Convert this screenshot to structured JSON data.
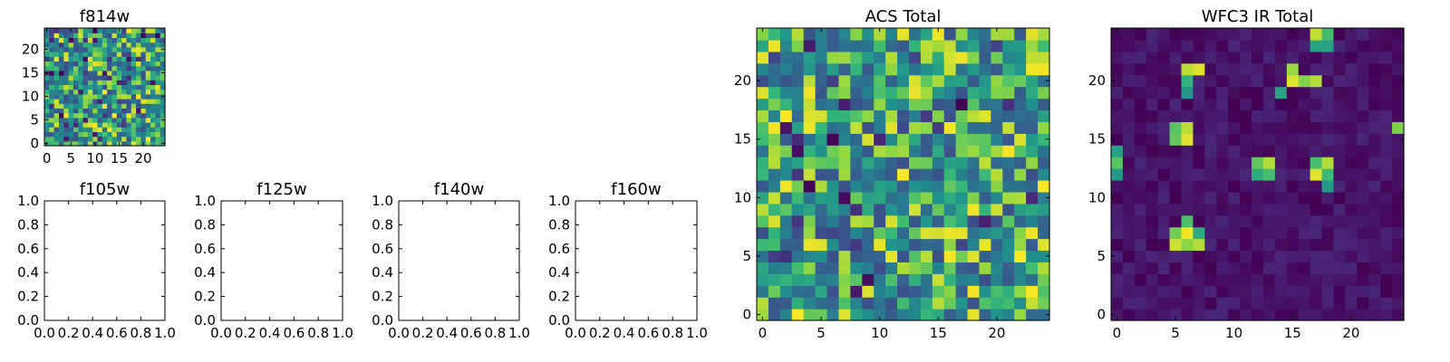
{
  "colors": {
    "axis": "#000000",
    "background": "#ffffff",
    "colormap": "viridis"
  },
  "chart_data": [
    {
      "type": "heatmap",
      "title": "f814w",
      "colormap": "viridis",
      "xlim": [
        -0.5,
        24.5
      ],
      "ylim": [
        -0.5,
        24.5
      ],
      "xticks": [
        "0",
        "5",
        "10",
        "15",
        "20"
      ],
      "yticks": [
        "0",
        "5",
        "10",
        "15",
        "20"
      ],
      "pattern": "noise",
      "value_range": [
        0,
        1
      ]
    },
    {
      "type": "heatmap",
      "title": "ACS Total",
      "colormap": "viridis",
      "xlim": [
        -0.5,
        24.5
      ],
      "ylim": [
        -0.5,
        24.5
      ],
      "xticks": [
        "0",
        "5",
        "10",
        "15",
        "20"
      ],
      "yticks": [
        "0",
        "5",
        "10",
        "15",
        "20"
      ],
      "pattern": "noise",
      "value_range": [
        0,
        1
      ]
    },
    {
      "type": "heatmap",
      "title": "WFC3 IR Total",
      "colormap": "viridis",
      "xlim": [
        -0.5,
        24.5
      ],
      "ylim": [
        -0.5,
        24.5
      ],
      "xticks": [
        "0",
        "5",
        "10",
        "15",
        "20"
      ],
      "yticks": [
        "0",
        "5",
        "10",
        "15",
        "20"
      ],
      "pattern": "sources",
      "value_range": [
        0,
        1
      ],
      "bright_sources": [
        {
          "x": 17,
          "y": 24
        },
        {
          "x": 18,
          "y": 24
        },
        {
          "x": 17,
          "y": 23
        },
        {
          "x": 18,
          "y": 23
        },
        {
          "x": 6,
          "y": 21
        },
        {
          "x": 7,
          "y": 21
        },
        {
          "x": 6,
          "y": 20
        },
        {
          "x": 6,
          "y": 19
        },
        {
          "x": 15,
          "y": 21
        },
        {
          "x": 16,
          "y": 20
        },
        {
          "x": 17,
          "y": 20
        },
        {
          "x": 15,
          "y": 20
        },
        {
          "x": 14,
          "y": 19
        },
        {
          "x": 24,
          "y": 16
        },
        {
          "x": 6,
          "y": 16
        },
        {
          "x": 5,
          "y": 16
        },
        {
          "x": 6,
          "y": 15
        },
        {
          "x": 5,
          "y": 15
        },
        {
          "x": 0,
          "y": 14
        },
        {
          "x": 0,
          "y": 13
        },
        {
          "x": 0,
          "y": 12
        },
        {
          "x": 12,
          "y": 13
        },
        {
          "x": 13,
          "y": 13
        },
        {
          "x": 12,
          "y": 12
        },
        {
          "x": 13,
          "y": 12
        },
        {
          "x": 18,
          "y": 13
        },
        {
          "x": 17,
          "y": 13
        },
        {
          "x": 18,
          "y": 12
        },
        {
          "x": 17,
          "y": 12
        },
        {
          "x": 18,
          "y": 11
        },
        {
          "x": 6,
          "y": 8
        },
        {
          "x": 6,
          "y": 7
        },
        {
          "x": 5,
          "y": 7
        },
        {
          "x": 7,
          "y": 7
        },
        {
          "x": 6,
          "y": 6
        },
        {
          "x": 7,
          "y": 6
        },
        {
          "x": 5,
          "y": 6
        }
      ]
    },
    {
      "type": "scatter",
      "title": "f105w",
      "xlim": [
        0,
        1
      ],
      "ylim": [
        0,
        1
      ],
      "xticks": [
        "0.0",
        "0.2",
        "0.4",
        "0.6",
        "0.8",
        "1.0"
      ],
      "yticks": [
        "0.0",
        "0.2",
        "0.4",
        "0.6",
        "0.8",
        "1.0"
      ],
      "values": []
    },
    {
      "type": "scatter",
      "title": "f125w",
      "xlim": [
        0,
        1
      ],
      "ylim": [
        0,
        1
      ],
      "xticks": [
        "0.0",
        "0.2",
        "0.4",
        "0.6",
        "0.8",
        "1.0"
      ],
      "yticks": [
        "0.0",
        "0.2",
        "0.4",
        "0.6",
        "0.8",
        "1.0"
      ],
      "values": []
    },
    {
      "type": "scatter",
      "title": "f140w",
      "xlim": [
        0,
        1
      ],
      "ylim": [
        0,
        1
      ],
      "xticks": [
        "0.0",
        "0.2",
        "0.4",
        "0.6",
        "0.8",
        "1.0"
      ],
      "yticks": [
        "0.0",
        "0.2",
        "0.4",
        "0.6",
        "0.8",
        "1.0"
      ],
      "values": []
    },
    {
      "type": "scatter",
      "title": "f160w",
      "xlim": [
        0,
        1
      ],
      "ylim": [
        0,
        1
      ],
      "xticks": [
        "0.0",
        "0.2",
        "0.4",
        "0.6",
        "0.8",
        "1.0"
      ],
      "yticks": [
        "0.0",
        "0.2",
        "0.4",
        "0.6",
        "0.8",
        "1.0"
      ],
      "values": []
    }
  ]
}
